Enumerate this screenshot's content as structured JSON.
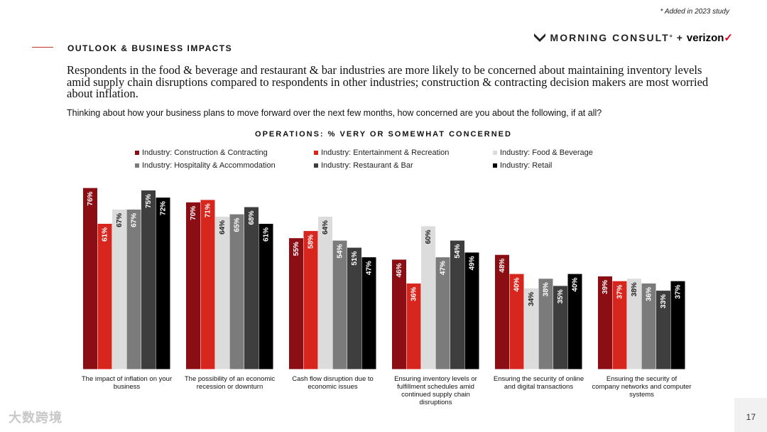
{
  "note": "* Added in 2023 study",
  "section_label": "OUTLOOK & BUSINESS IMPACTS",
  "brand": {
    "name": "MORNING CONSULT",
    "mark": "°",
    "plus": "+",
    "partner": "verizon",
    "partner_check": "✓"
  },
  "headline": "Respondents in the food & beverage and restaurant & bar industries are more likely to be concerned about maintaining inventory levels amid supply chain disruptions compared to respondents in other industries; construction & contracting decision makers are most worried about inflation.",
  "question": "Thinking about how your business plans to move forward over the next few months, how concerned are you about the following, if at all?",
  "footer_mark": "大数跨境",
  "page_number": "17",
  "chart_data": {
    "type": "bar",
    "title": "OPERATIONS: % VERY OR SOMEWHAT CONCERNED",
    "xlabel": "",
    "ylabel": "",
    "ylim": [
      0,
      80
    ],
    "legend_position": "top",
    "categories": [
      "The impact of inflation on your business",
      "The possibility of an economic recession or downturn",
      "Cash flow disruption due to economic issues",
      "Ensuring inventory levels or fulfillment schedules amid continued supply chain disruptions",
      "Ensuring the security of online and digital transactions",
      "Ensuring the security of company networks and computer systems"
    ],
    "series": [
      {
        "name": "Industry: Construction & Contracting",
        "color": "#8b0e14",
        "values": [
          76,
          70,
          55,
          46,
          48,
          39
        ]
      },
      {
        "name": "Industry: Entertainment & Recreation",
        "color": "#d7261e",
        "values": [
          61,
          71,
          58,
          36,
          40,
          37
        ]
      },
      {
        "name": "Industry: Food & Beverage",
        "color": "#dcdcdc",
        "values": [
          67,
          64,
          64,
          60,
          34,
          38
        ]
      },
      {
        "name": "Industry: Hospitality & Accommodation",
        "color": "#7b7b7b",
        "values": [
          67,
          65,
          54,
          47,
          38,
          36
        ]
      },
      {
        "name": "Industry: Restaurant & Bar",
        "color": "#3e3e3e",
        "values": [
          75,
          68,
          51,
          54,
          35,
          33
        ]
      },
      {
        "name": "Industry: Retail",
        "color": "#000000",
        "values": [
          72,
          61,
          47,
          49,
          40,
          37
        ]
      }
    ],
    "value_suffix": "%"
  }
}
